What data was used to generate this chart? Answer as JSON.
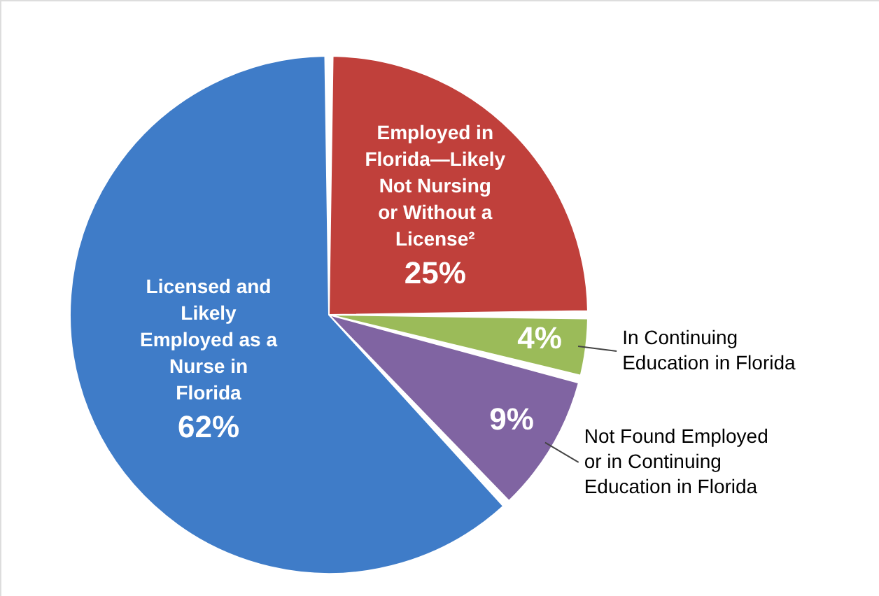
{
  "chart_data": {
    "type": "pie",
    "categories": [
      "Employed in Florida—Likely Not Nursing or Without a License²",
      "In Continuing Education in Florida",
      "Not Found Employed or in Continuing Education in Florida",
      "Licensed and Likely Employed as a Nurse in Florida"
    ],
    "values": [
      25,
      4,
      9,
      62
    ],
    "colors": [
      "#c0403b",
      "#9bbb59",
      "#8064a2",
      "#3f7cc8"
    ],
    "value_labels": [
      "25%",
      "4%",
      "9%",
      "62%"
    ]
  }
}
